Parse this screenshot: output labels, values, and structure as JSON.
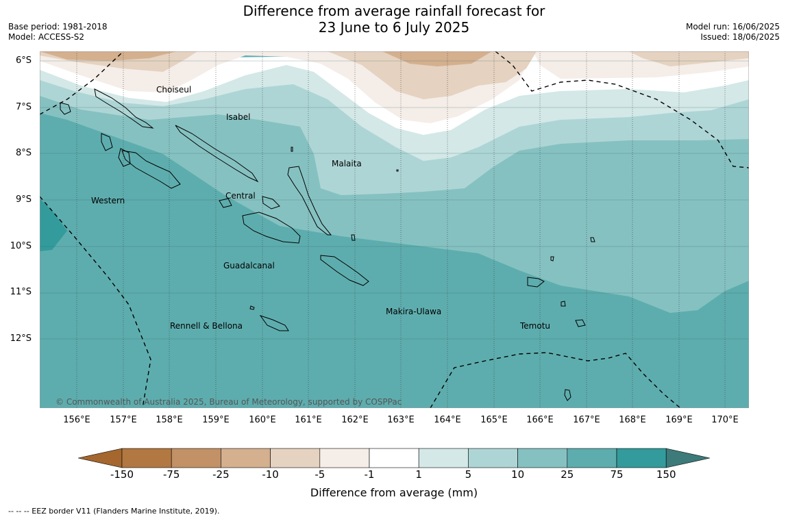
{
  "title_line1": "Difference from average rainfall forecast for",
  "title_line2": "23 June to 6 July 2025",
  "base_period": "Base period: 1981-2018",
  "model": "Model: ACCESS-S2",
  "model_run": "Model run: 16/06/2025",
  "issued": "Issued: 18/06/2025",
  "lat_labels": [
    "6°S",
    "7°S",
    "8°S",
    "9°S",
    "10°S",
    "11°S",
    "12°S"
  ],
  "lon_labels": [
    "156°E",
    "157°E",
    "158°E",
    "159°E",
    "160°E",
    "161°E",
    "162°E",
    "163°E",
    "164°E",
    "165°E",
    "166°E",
    "167°E",
    "168°E",
    "169°E",
    "170°E"
  ],
  "regions": {
    "choiseul": "Choiseul",
    "isabel": "Isabel",
    "malaita": "Malaita",
    "western": "Western",
    "central": "Central",
    "guadalcanal": "Guadalcanal",
    "makira": "Makira-Ulawa",
    "rennell": "Rennell & Bellona",
    "temotu": "Temotu"
  },
  "copyright": "© Commonwealth of Australia 2025, Bureau of Meteorology, supported by COSPPac",
  "colorbar": {
    "label": "Difference from average (mm)",
    "ticks": [
      "-150",
      "-75",
      "-25",
      "-10",
      "-5",
      "-1",
      "1",
      "5",
      "10",
      "25",
      "75",
      "150"
    ],
    "colors": [
      "#a5672e",
      "#b27841",
      "#c29166",
      "#d4b08f",
      "#e5d2c0",
      "#f5ede8",
      "#ffffff",
      "#d3e8e7",
      "#aed5d5",
      "#86c1c1",
      "#5eadae",
      "#339b9c",
      "#3d7a7a"
    ]
  },
  "footnote": "-- -- -- EEZ border V11 (Flanders Marine Institute, 2019)."
}
